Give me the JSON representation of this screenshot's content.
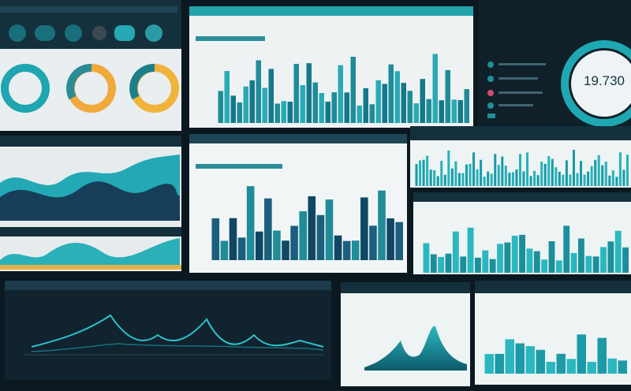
{
  "gauge": {
    "value": "19.730"
  }
}
